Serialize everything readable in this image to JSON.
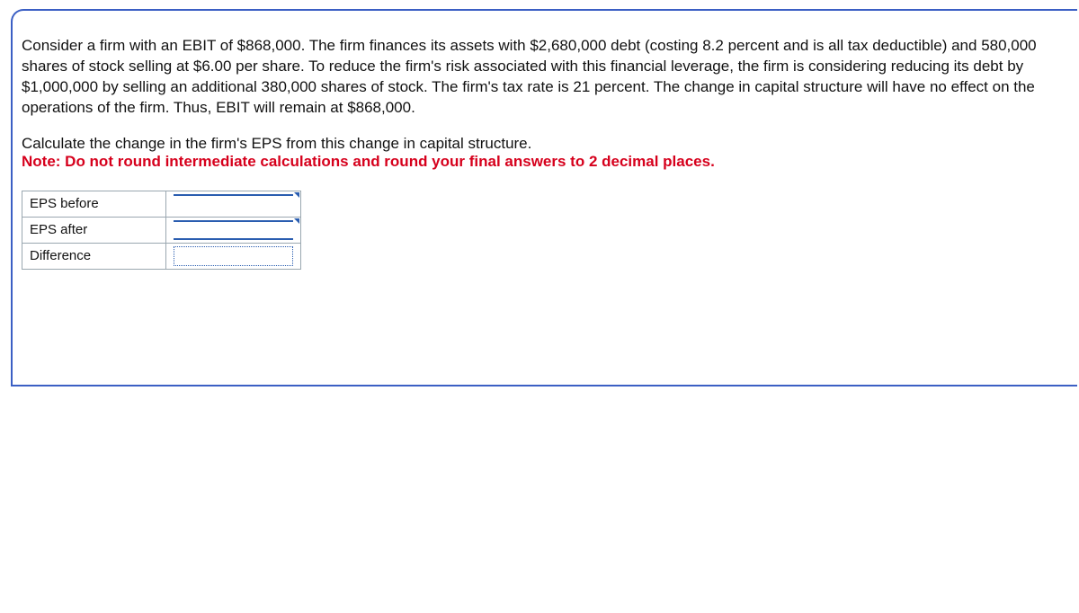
{
  "problem": {
    "paragraph": "Consider a firm with an EBIT of $868,000. The firm finances its assets with $2,680,000 debt (costing 8.2 percent and is all tax deductible) and 580,000 shares of stock selling at $6.00 per share. To reduce the firm's risk associated with this financial leverage, the firm is considering reducing its debt by $1,000,000 by selling an additional 380,000 shares of stock. The firm's tax rate is 21 percent. The change in capital structure will have no effect on the operations of the firm. Thus, EBIT will remain at $868,000.",
    "prompt": "Calculate the change in the firm's EPS from this change in capital structure.",
    "note": "Note: Do not round intermediate calculations and round your final answers to 2 decimal places."
  },
  "table": {
    "rows": [
      {
        "label": "EPS before",
        "value": ""
      },
      {
        "label": "EPS after",
        "value": ""
      },
      {
        "label": "Difference",
        "value": ""
      }
    ]
  },
  "colors": {
    "frame_border": "#3b5fc4",
    "note_color": "#d6001c",
    "cell_border": "#9aa7b0",
    "active_border": "#2a5db0"
  }
}
